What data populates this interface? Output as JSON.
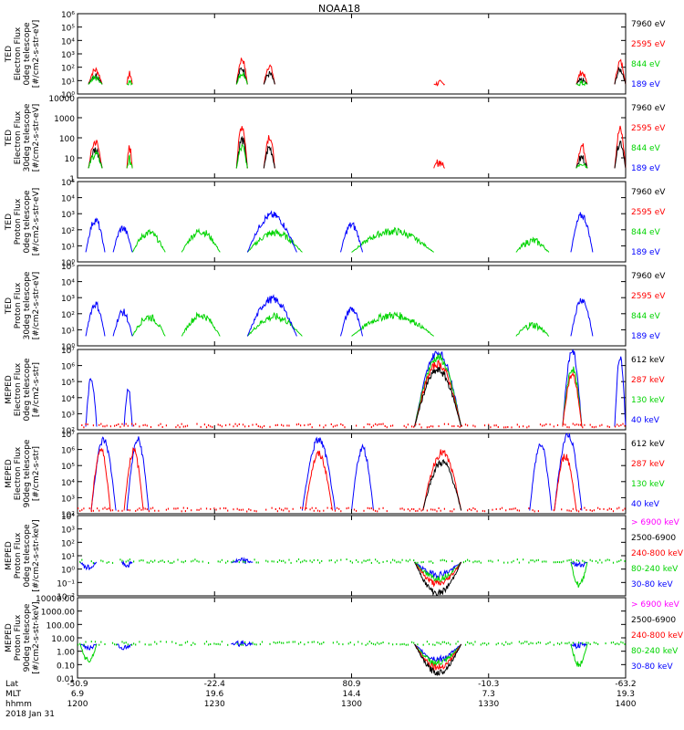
{
  "title": "NOAA18",
  "colors": {
    "black": "#000000",
    "red": "#ff0000",
    "green": "#00d400",
    "blue": "#0000ff",
    "magenta": "#ff00ff"
  },
  "chart_data": {
    "type": "line",
    "title": "NOAA18",
    "x_ticks": [
      {
        "lat": "-50.9",
        "mlt": "6.9",
        "hhmm": "1200"
      },
      {
        "lat": "-22.4",
        "mlt": "19.6",
        "hhmm": "1230"
      },
      {
        "lat": "80.9",
        "mlt": "14.4",
        "hhmm": "1300"
      },
      {
        "lat": "-10.3",
        "mlt": "7.3",
        "hhmm": "1330"
      },
      {
        "lat": "-63.2",
        "mlt": "19.3",
        "hhmm": "1400"
      }
    ],
    "x_row_labels": [
      "Lat",
      "MLT",
      "hhmm"
    ],
    "date": "2018 Jan 31",
    "xlim": [
      1200,
      1400
    ],
    "panels": [
      {
        "ylabel": [
          "TED",
          "Electron Flux",
          "0deg telescope",
          "[#/cm2-s-str-eV]"
        ],
        "yscale": "log",
        "ylim": [
          1,
          1000000
        ],
        "yticks": [
          "10⁰",
          "10¹",
          "10²",
          "10³",
          "10⁴",
          "10⁵",
          "10⁶"
        ],
        "legend": [
          {
            "label": "7960 eV",
            "color": "black"
          },
          {
            "label": "2595 eV",
            "color": "red"
          },
          {
            "label": "844 eV",
            "color": "green"
          },
          {
            "label": "189 eV",
            "color": "blue"
          }
        ]
      },
      {
        "ylabel": [
          "TED",
          "Electron Flux",
          "30deg telescope",
          "[#/cm2-s-str-eV]"
        ],
        "yscale": "log",
        "ylim": [
          1,
          10000
        ],
        "yticks": [
          "1",
          "10",
          "100",
          "1000",
          "10000"
        ],
        "legend": [
          {
            "label": "7960 eV",
            "color": "black"
          },
          {
            "label": "2595 eV",
            "color": "red"
          },
          {
            "label": "844 eV",
            "color": "green"
          },
          {
            "label": "189 eV",
            "color": "blue"
          }
        ]
      },
      {
        "ylabel": [
          "TED",
          "Proton Flux",
          "0deg telescope",
          "[#/cm2-s-str-eV]"
        ],
        "yscale": "log",
        "ylim": [
          1,
          100000
        ],
        "yticks": [
          "10⁰",
          "10¹",
          "10²",
          "10³",
          "10⁴",
          "10⁵"
        ],
        "legend": [
          {
            "label": "7960 eV",
            "color": "black"
          },
          {
            "label": "2595 eV",
            "color": "red"
          },
          {
            "label": "844 eV",
            "color": "green"
          },
          {
            "label": "189 eV",
            "color": "blue"
          }
        ]
      },
      {
        "ylabel": [
          "TED",
          "Proton Flux",
          "30deg telescope",
          "[#/cm2-s-str-eV]"
        ],
        "yscale": "log",
        "ylim": [
          1,
          100000
        ],
        "yticks": [
          "10⁰",
          "10¹",
          "10²",
          "10³",
          "10⁴",
          "10⁵"
        ],
        "legend": [
          {
            "label": "7960 eV",
            "color": "black"
          },
          {
            "label": "2595 eV",
            "color": "red"
          },
          {
            "label": "844 eV",
            "color": "green"
          },
          {
            "label": "189 eV",
            "color": "blue"
          }
        ]
      },
      {
        "ylabel": [
          "MEPED",
          "Electron Flux",
          "0deg telescope",
          "[#/cm2-s-str]"
        ],
        "yscale": "log",
        "ylim": [
          100,
          10000000
        ],
        "yticks": [
          "10²",
          "10³",
          "10⁴",
          "10⁵",
          "10⁶",
          "10⁷"
        ],
        "legend": [
          {
            "label": "612 keV",
            "color": "black"
          },
          {
            "label": "287 keV",
            "color": "red"
          },
          {
            "label": "130 keV",
            "color": "green"
          },
          {
            "label": "40 keV",
            "color": "blue"
          }
        ]
      },
      {
        "ylabel": [
          "MEPED",
          "Electron Flux",
          "90deg telescope",
          "[#/cm2-s-str]"
        ],
        "yscale": "log",
        "ylim": [
          100,
          10000000
        ],
        "yticks": [
          "10²",
          "10³",
          "10⁴",
          "10⁵",
          "10⁶",
          "10⁷"
        ],
        "legend": [
          {
            "label": "612 keV",
            "color": "black"
          },
          {
            "label": "287 keV",
            "color": "red"
          },
          {
            "label": "130 keV",
            "color": "green"
          },
          {
            "label": "40 keV",
            "color": "blue"
          }
        ]
      },
      {
        "ylabel": [
          "MEPED",
          "Proton Flux",
          "0deg telescope",
          "[#/cm2-s-str-keV]"
        ],
        "yscale": "log",
        "ylim": [
          0.01,
          10000
        ],
        "yticks": [
          "10⁻²",
          "10⁻¹",
          "10⁰",
          "10¹",
          "10²",
          "10³",
          "10⁴"
        ],
        "legend": [
          {
            "label": "> 6900 keV",
            "color": "magenta"
          },
          {
            "label": "2500-6900",
            "color": "black"
          },
          {
            "label": "240-800 keV",
            "color": "red"
          },
          {
            "label": "80-240 keV",
            "color": "green"
          },
          {
            "label": "30-80 keV",
            "color": "blue"
          }
        ]
      },
      {
        "ylabel": [
          "MEPED",
          "Proton Flux",
          "90deg telescope",
          "[#/cm2-s-str-keV]"
        ],
        "yscale": "log",
        "ylim": [
          0.01,
          10000
        ],
        "yticks": [
          "0.01",
          "0.10",
          "1.00",
          "10.00",
          "100.00",
          "1000.00",
          "10000.00"
        ],
        "legend": [
          {
            "label": "> 6900 keV",
            "color": "magenta"
          },
          {
            "label": "2500-6900",
            "color": "black"
          },
          {
            "label": "240-800 keV",
            "color": "red"
          },
          {
            "label": "80-240 keV",
            "color": "green"
          },
          {
            "label": "30-80 keV",
            "color": "blue"
          }
        ]
      }
    ],
    "series_envelopes": {
      "ted_e": [
        {
          "color": "red",
          "bumps": [
            [
              1204,
              1209,
              1.8
            ],
            [
              1218,
              1220,
              1.5
            ],
            [
              1258,
              1262,
              2.6
            ],
            [
              1268,
              1272,
              2.1
            ],
            [
              1330,
              1334,
              0.8
            ],
            [
              1382,
              1386,
              1.6
            ],
            [
              1396,
              1400,
              2.4
            ]
          ]
        },
        {
          "color": "black",
          "bumps": [
            [
              1204,
              1209,
              1.4
            ],
            [
              1258,
              1262,
              1.9
            ],
            [
              1268,
              1272,
              1.5
            ],
            [
              1382,
              1386,
              1.0
            ],
            [
              1396,
              1400,
              1.8
            ]
          ]
        },
        {
          "color": "green",
          "bumps": [
            [
              1204,
              1209,
              1.2
            ],
            [
              1218,
              1220,
              0.9
            ],
            [
              1258,
              1262,
              1.5
            ],
            [
              1382,
              1386,
              0.8
            ]
          ]
        }
      ],
      "ted_p": [
        {
          "color": "green",
          "bumps": [
            [
              1220,
              1232,
              1.8
            ],
            [
              1238,
              1252,
              1.9
            ],
            [
              1262,
              1282,
              1.8
            ],
            [
              1300,
              1330,
              1.9
            ],
            [
              1360,
              1372,
              1.3
            ]
          ]
        },
        {
          "color": "blue",
          "bumps": [
            [
              1203,
              1210,
              2.6
            ],
            [
              1213,
              1220,
              2.1
            ],
            [
              1262,
              1280,
              2.9
            ],
            [
              1296,
              1304,
              2.3
            ],
            [
              1380,
              1388,
              2.9
            ]
          ]
        }
      ],
      "meped_e0": [
        {
          "color": "blue",
          "bumps": [
            [
              1203,
              1207,
              3.2
            ],
            [
              1217,
              1220,
              2.6
            ],
            [
              1323,
              1340,
              4.8
            ],
            [
              1377,
              1384,
              5.4
            ],
            [
              1396,
              1400,
              4.6
            ]
          ]
        },
        {
          "color": "green",
          "bumps": [
            [
              1323,
              1340,
              4.5
            ],
            [
              1377,
              1384,
              3.8
            ]
          ]
        },
        {
          "color": "red",
          "bumps": [
            [
              1323,
              1340,
              4.1
            ],
            [
              1377,
              1384,
              3.4
            ]
          ]
        },
        {
          "color": "black",
          "bumps": [
            [
              1323,
              1340,
              3.7
            ]
          ]
        }
      ],
      "meped_e90": [
        {
          "color": "blue",
          "bumps": [
            [
              1205,
              1214,
              4.6
            ],
            [
              1218,
              1226,
              4.6
            ],
            [
              1282,
              1294,
              4.6
            ],
            [
              1300,
              1308,
              4.1
            ],
            [
              1365,
              1373,
              4.3
            ],
            [
              1374,
              1384,
              6.3
            ]
          ]
        },
        {
          "color": "red",
          "bumps": [
            [
              1205,
              1212,
              4.0
            ],
            [
              1217,
              1224,
              3.9
            ],
            [
              1283,
              1293,
              3.7
            ],
            [
              1326,
              1340,
              3.8
            ],
            [
              1374,
              1382,
              3.6
            ]
          ]
        },
        {
          "color": "black",
          "bumps": [
            [
              1326,
              1340,
              3.2
            ]
          ]
        }
      ],
      "meped_p0": [
        {
          "color": "blue",
          "bumps": [
            [
              1201,
              1207,
              2.1
            ],
            [
              1216,
              1220,
              2.3
            ],
            [
              1256,
              1264,
              2.6
            ],
            [
              1323,
              1340,
              1.6
            ],
            [
              1380,
              1386,
              2.3
            ]
          ]
        },
        {
          "color": "green",
          "bumps": [
            [
              1323,
              1340,
              1.3
            ],
            [
              1380,
              1386,
              0.8
            ]
          ]
        },
        {
          "color": "red",
          "bumps": [
            [
              1323,
              1340,
              0.9
            ]
          ]
        },
        {
          "color": "black",
          "bumps": [
            [
              1323,
              1340,
              0.2
            ]
          ]
        }
      ],
      "meped_p90": [
        {
          "color": "blue",
          "bumps": [
            [
              1201,
              1207,
              2.3
            ],
            [
              1214,
              1220,
              2.3
            ],
            [
              1256,
              1264,
              2.6
            ],
            [
              1323,
              1340,
              1.4
            ],
            [
              1380,
              1386,
              2.4
            ]
          ]
        },
        {
          "color": "green",
          "bumps": [
            [
              1201,
              1207,
              1.3
            ],
            [
              1323,
              1340,
              1.1
            ],
            [
              1380,
              1386,
              1.0
            ]
          ]
        },
        {
          "color": "red",
          "bumps": [
            [
              1323,
              1340,
              0.8
            ]
          ]
        },
        {
          "color": "black",
          "bumps": [
            [
              1323,
              1340,
              0.4
            ]
          ]
        }
      ]
    }
  }
}
